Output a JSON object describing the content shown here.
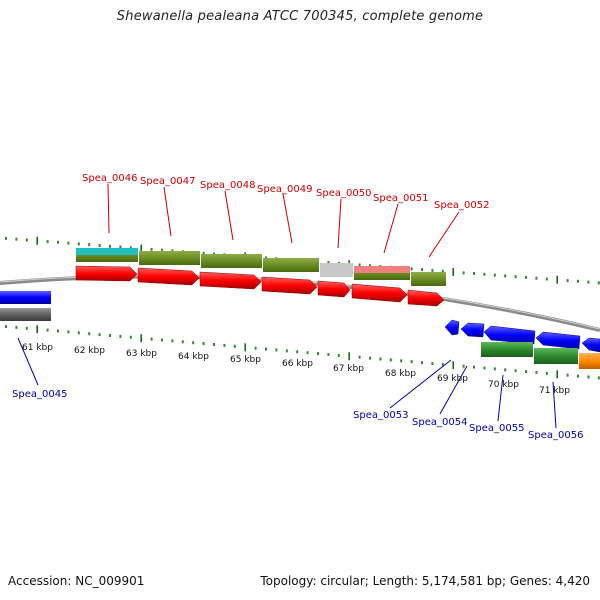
{
  "title": "Shewanella pealeana ATCC 700345, complete genome",
  "footer": {
    "accession": "Accession: NC_009901",
    "summary": "Topology: circular; Length: 5,174,581 bp; Genes: 4,420"
  },
  "colors": {
    "backbone": "#808080",
    "ticks_major": "#1a6b1a",
    "ticks_minor": "#2e8b2e",
    "forward_label": "#cc0000",
    "reverse_label": "#0000aa",
    "forward_gene": "#ff0000",
    "reverse_gene": "#0000ff",
    "cds_feature": "#6b8e23",
    "cds_feature_alt": "#2e8b2e",
    "cyan_feature": "#20c0c0",
    "grey_feature": "#c8c8c8",
    "pink_feature": "#f08080",
    "orange_feature": "#ff8c00",
    "grey_gene": "#555555"
  },
  "scale": {
    "kbp_labels": [
      "61 kbp",
      "62 kbp",
      "63 kbp",
      "64 kbp",
      "65 kbp",
      "66 kbp",
      "67 kbp",
      "68 kbp",
      "69 kbp",
      "70 kbp",
      "71 kbp"
    ]
  },
  "forward_genes": [
    {
      "label": "Spea_0046"
    },
    {
      "label": "Spea_0047"
    },
    {
      "label": "Spea_0048"
    },
    {
      "label": "Spea_0049"
    },
    {
      "label": "Spea_0050"
    },
    {
      "label": "Spea_0051"
    },
    {
      "label": "Spea_0052"
    }
  ],
  "reverse_genes": [
    {
      "label": "Spea_0045"
    },
    {
      "label": "Spea_0053"
    },
    {
      "label": "Spea_0054"
    },
    {
      "label": "Spea_0055"
    },
    {
      "label": "Spea_0056"
    }
  ]
}
